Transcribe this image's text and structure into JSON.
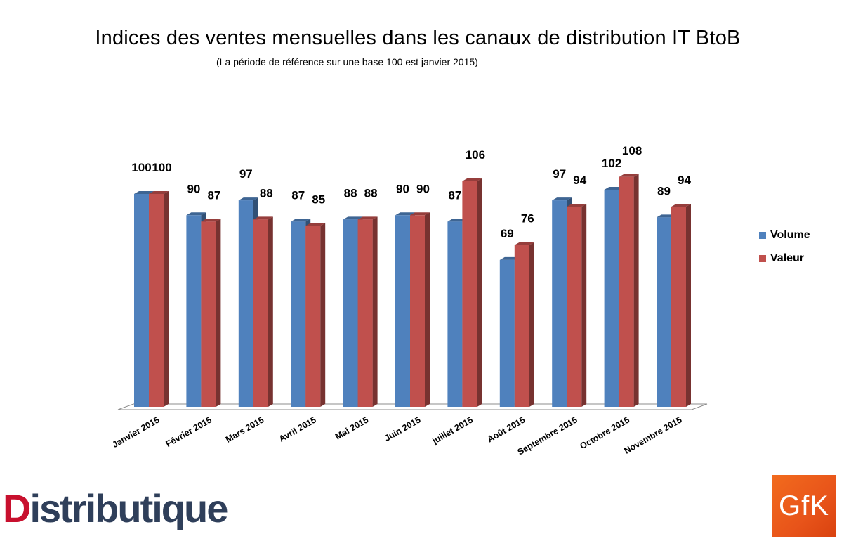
{
  "chart_data": {
    "type": "bar",
    "title": "Indices des ventes mensuelles dans les canaux de distribution IT BtoB",
    "subtitle": "(La période de référence sur une base 100 est janvier 2015)",
    "categories": [
      "Janvier 2015",
      "Février 2015",
      "Mars 2015",
      "Avril 2015",
      "Mai 2015",
      "Juin 2015",
      "juillet 2015",
      "Août 2015",
      "Septembre 2015",
      "Octobre 2015",
      "Novembre 2015"
    ],
    "series": [
      {
        "name": "Volume",
        "values": [
          100,
          90,
          97,
          87,
          88,
          90,
          87,
          69,
          97,
          102,
          89
        ],
        "color": "#4f81bd"
      },
      {
        "name": "Valeur",
        "values": [
          100,
          87,
          88,
          85,
          88,
          90,
          106,
          76,
          94,
          108,
          94
        ],
        "color": "#c0504d"
      }
    ],
    "ylim": [
      0,
      110
    ],
    "grid": false,
    "legend_position": "right",
    "data_labels": true
  },
  "logos": {
    "distributique": {
      "first": "D",
      "rest": "istributique",
      "colors": {
        "first": "#c8102e",
        "rest": "#2f3f5a"
      }
    },
    "gfk": {
      "text": "GfK",
      "color": "#f26b1d"
    }
  }
}
